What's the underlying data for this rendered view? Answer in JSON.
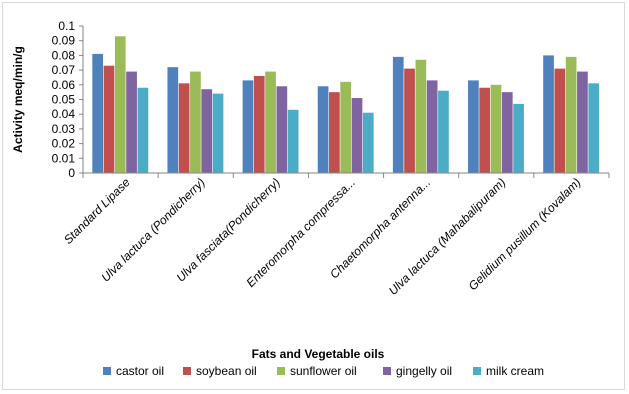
{
  "chart_data": {
    "type": "bar",
    "xlabel": "Fats and Vegetable oils",
    "ylabel": "Activity meq/min/g",
    "ylim": [
      0,
      0.1
    ],
    "yticks": [
      0,
      0.01,
      0.02,
      0.03,
      0.04,
      0.05,
      0.06,
      0.07,
      0.08,
      0.09,
      0.1
    ],
    "ytick_labels": [
      "0",
      "0.01",
      "0.02",
      "0.03",
      "0.04",
      "0.05",
      "0.06",
      "0.07",
      "0.08",
      "0.09",
      "0.1"
    ],
    "grid": false,
    "legend_position": "bottom",
    "categories": [
      "Standard Lipase",
      "Ulva lactuca (Pondicherry)",
      "Ulva fasciata(Pondicherry)",
      "Enteromorpha compressa...",
      "Chaetomorpha antenna...",
      "Ulva lactuca (Mahabalipuram)",
      "Gelidium pusillum (Kovalam)"
    ],
    "series": [
      {
        "name": "castor oil",
        "color": "#4f81bd",
        "values": [
          0.081,
          0.072,
          0.063,
          0.059,
          0.079,
          0.063,
          0.08
        ]
      },
      {
        "name": "soybean oil",
        "color": "#c0504d",
        "values": [
          0.073,
          0.061,
          0.066,
          0.055,
          0.071,
          0.058,
          0.071
        ]
      },
      {
        "name": "sunflower oil",
        "color": "#9bbb59",
        "values": [
          0.093,
          0.069,
          0.069,
          0.062,
          0.077,
          0.06,
          0.079
        ]
      },
      {
        "name": "gingelly oil",
        "color": "#8064a2",
        "values": [
          0.069,
          0.057,
          0.059,
          0.051,
          0.063,
          0.055,
          0.069
        ]
      },
      {
        "name": "milk cream",
        "color": "#4bacc6",
        "values": [
          0.058,
          0.054,
          0.043,
          0.041,
          0.056,
          0.047,
          0.061
        ]
      }
    ]
  }
}
